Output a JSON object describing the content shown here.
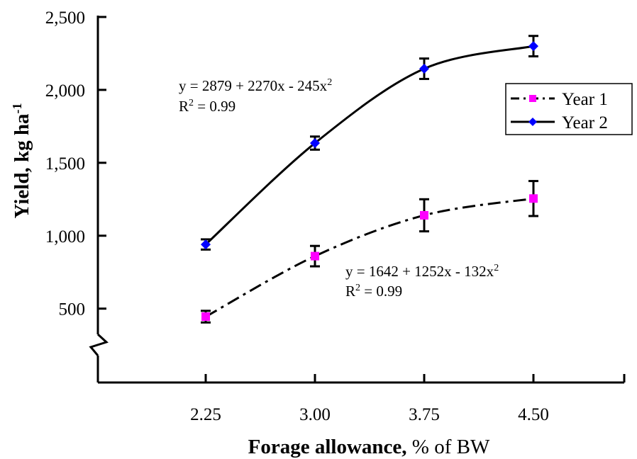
{
  "chart_data": {
    "type": "scatter",
    "xlabel_bold": "Forage allowance,",
    "xlabel_rest": " % of BW",
    "ylabel_main": "Yield, kg ha",
    "ylabel_sup": "-1",
    "x_tick_labels": [
      "2.25",
      "3.00",
      "3.75",
      "4.50"
    ],
    "y_tick_labels": [
      "500",
      "1,000",
      "1,500",
      "2,000",
      "2,500"
    ],
    "y_ticks": [
      500,
      1000,
      1500,
      2000,
      2500
    ],
    "ylim": [
      0,
      2500
    ],
    "axis_break": true,
    "grid": false,
    "legend_position": "right",
    "series": [
      {
        "name": "Year 1",
        "marker": "square",
        "color": "#ff00ff",
        "line": "dash-dot",
        "x": [
          2.25,
          3.0,
          3.75,
          4.5
        ],
        "y": [
          445,
          860,
          1140,
          1255
        ],
        "err": [
          40,
          70,
          110,
          120
        ],
        "equation": "y = 1642 + 1252x - 132x",
        "equation_sup": "2",
        "r2_prefix": "R",
        "r2_sup": "2",
        "r2_value": " = 0.99"
      },
      {
        "name": "Year 2",
        "marker": "diamond",
        "color": "#0000ff",
        "line": "solid",
        "x": [
          2.25,
          3.0,
          3.75,
          4.5
        ],
        "y": [
          940,
          1635,
          2145,
          2300
        ],
        "err": [
          35,
          45,
          70,
          70
        ],
        "equation": "y = 2879 + 2270x - 245x",
        "equation_sup": "2",
        "r2_prefix": "R",
        "r2_sup": "2",
        "r2_value": " = 0.99"
      }
    ]
  }
}
